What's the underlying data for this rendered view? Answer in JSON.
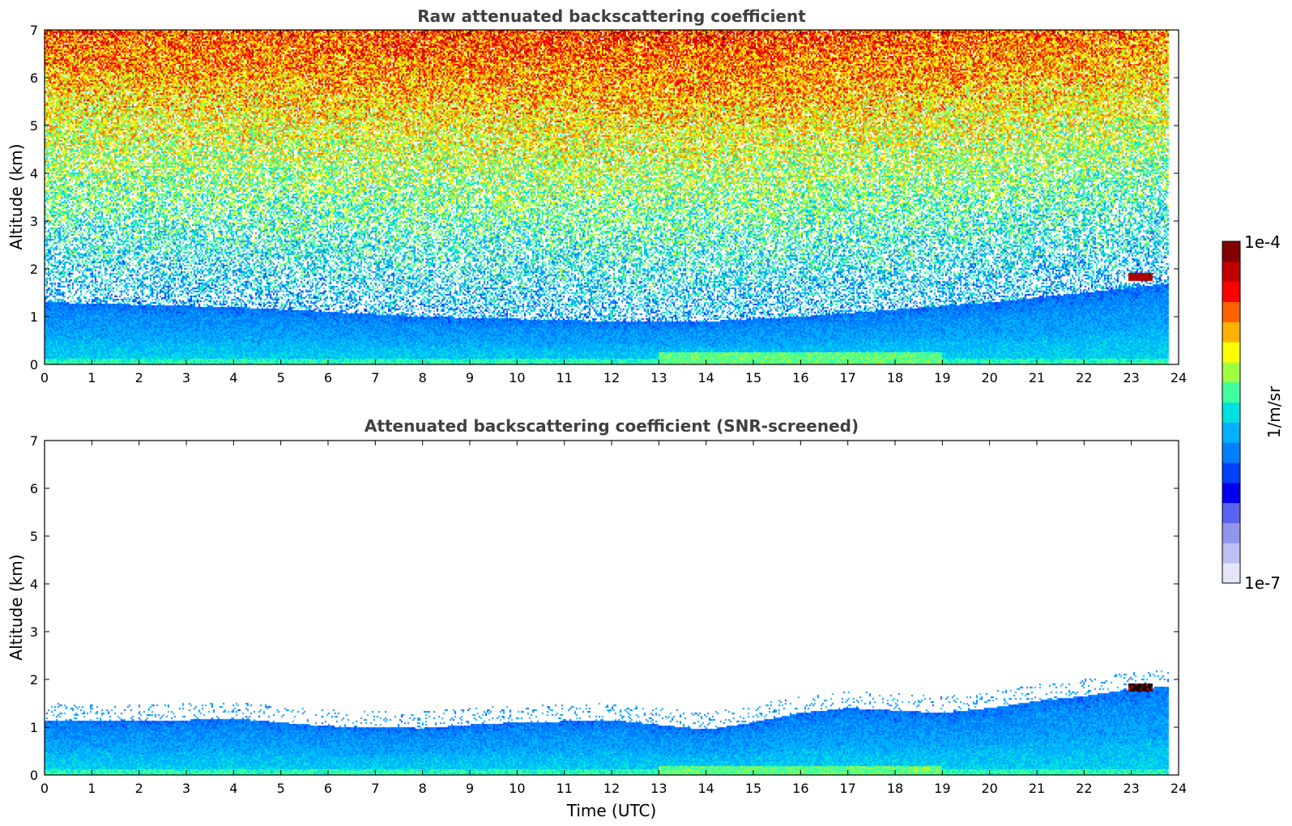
{
  "chart_data": [
    {
      "type": "heatmap",
      "title": "Raw attenuated backscattering coefficient",
      "xlabel": "",
      "ylabel": "Altitude (km)",
      "xlim": [
        0,
        24
      ],
      "ylim": [
        0,
        7
      ],
      "xticks": [
        "0",
        "1",
        "2",
        "3",
        "4",
        "5",
        "6",
        "7",
        "8",
        "9",
        "10",
        "11",
        "12",
        "13",
        "14",
        "15",
        "16",
        "17",
        "18",
        "19",
        "20",
        "21",
        "22",
        "23",
        "24"
      ],
      "yticks": [
        "0",
        "1",
        "2",
        "3",
        "4",
        "5",
        "6",
        "7"
      ],
      "data_end_hour": 23.8,
      "boundary_layer_top_km": [
        [
          0,
          1.3
        ],
        [
          2,
          1.25
        ],
        [
          4,
          1.2
        ],
        [
          6,
          1.1
        ],
        [
          8,
          1.0
        ],
        [
          10,
          0.95
        ],
        [
          12,
          0.9
        ],
        [
          14,
          0.9
        ],
        [
          16,
          1.0
        ],
        [
          18,
          1.15
        ],
        [
          20,
          1.3
        ],
        [
          22,
          1.5
        ],
        [
          23.8,
          1.7
        ]
      ],
      "surface_layer_peak": {
        "hours": [
          13,
          19
        ],
        "altitude_km": [
          0,
          0.25
        ],
        "level": "green"
      },
      "cloud": {
        "hours": [
          22.95,
          23.45
        ],
        "altitude_km": [
          1.75,
          1.9
        ],
        "level": "dark-red"
      }
    },
    {
      "type": "heatmap",
      "title": "Attenuated backscattering coefficient (SNR-screened)",
      "xlabel": "Time (UTC)",
      "ylabel": "Altitude (km)",
      "xlim": [
        0,
        24
      ],
      "ylim": [
        0,
        7
      ],
      "xticks": [
        "0",
        "1",
        "2",
        "3",
        "4",
        "5",
        "6",
        "7",
        "8",
        "9",
        "10",
        "11",
        "12",
        "13",
        "14",
        "15",
        "16",
        "17",
        "18",
        "19",
        "20",
        "21",
        "22",
        "23",
        "24"
      ],
      "yticks": [
        "0",
        "1",
        "2",
        "3",
        "4",
        "5",
        "6",
        "7"
      ],
      "data_end_hour": 23.8,
      "boundary_layer_top_km": [
        [
          0,
          1.15
        ],
        [
          1,
          1.13
        ],
        [
          2,
          1.12
        ],
        [
          3,
          1.15
        ],
        [
          4,
          1.18
        ],
        [
          5,
          1.1
        ],
        [
          6,
          1.02
        ],
        [
          7,
          1.0
        ],
        [
          8,
          0.98
        ],
        [
          9,
          1.05
        ],
        [
          10,
          1.1
        ],
        [
          11,
          1.12
        ],
        [
          12,
          1.15
        ],
        [
          13,
          1.05
        ],
        [
          14,
          0.95
        ],
        [
          15,
          1.1
        ],
        [
          16,
          1.3
        ],
        [
          17,
          1.4
        ],
        [
          18,
          1.35
        ],
        [
          19,
          1.3
        ],
        [
          20,
          1.4
        ],
        [
          21,
          1.55
        ],
        [
          22,
          1.65
        ],
        [
          23,
          1.8
        ],
        [
          23.8,
          1.85
        ]
      ],
      "surface_layer_peak": {
        "hours": [
          13,
          19
        ],
        "altitude_km": [
          0,
          0.2
        ],
        "level": "green"
      },
      "cloud": {
        "hours": [
          22.95,
          23.45
        ],
        "altitude_km": [
          1.75,
          1.9
        ],
        "level": "black"
      }
    }
  ],
  "colorbar": {
    "label": "1/m/sr",
    "min_label": "1e-7",
    "max_label": "1e-4",
    "scale": "log",
    "colors": [
      "#e4e6f8",
      "#bcc0f2",
      "#9096ee",
      "#5a62f0",
      "#0000f0",
      "#0040ff",
      "#0080ff",
      "#00b0ff",
      "#00e0e0",
      "#40ffa0",
      "#a0ff40",
      "#ffff00",
      "#ffb000",
      "#ff6000",
      "#ff0000",
      "#c00000",
      "#800000"
    ]
  }
}
